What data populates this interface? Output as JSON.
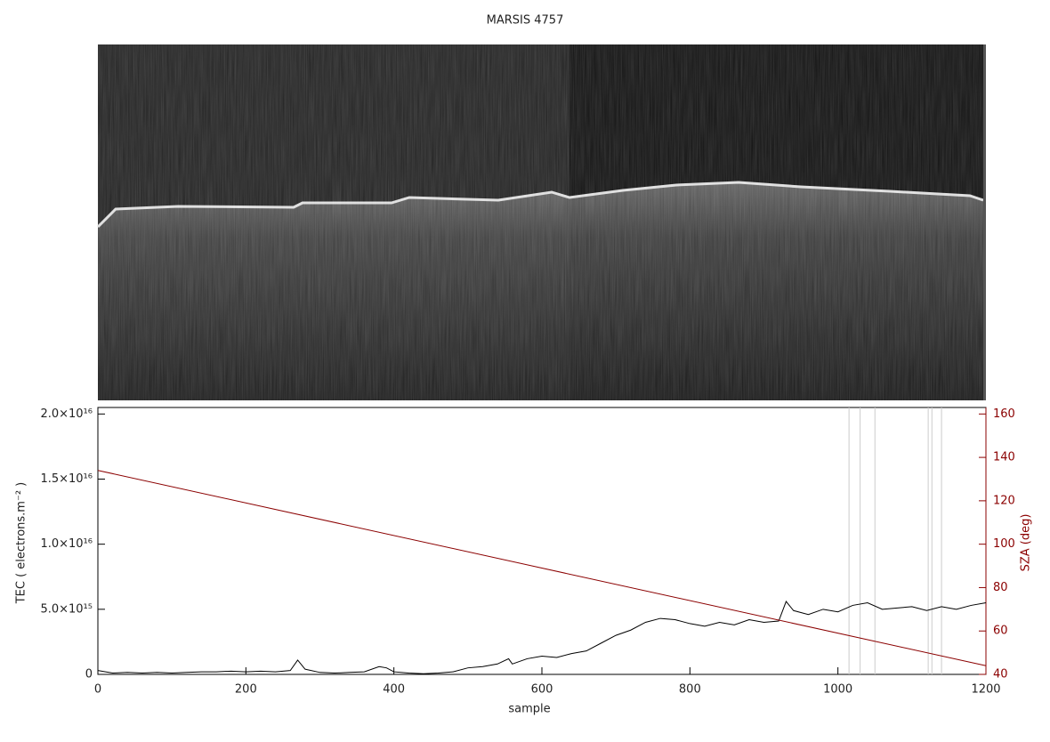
{
  "chart_data": {
    "type": "line",
    "title": "MARSIS 4757",
    "xlabel": "sample",
    "ylabel": "TEC ( electrons.m⁻² )",
    "y2label": "SZA (deg)",
    "xlim": [
      0,
      1200
    ],
    "xticks": [
      0,
      200,
      400,
      600,
      800,
      1000,
      1200
    ],
    "ylim": [
      0,
      2.05e+16
    ],
    "yticks": [
      {
        "value": 0,
        "label": "0"
      },
      {
        "value": 5000000000000000.0,
        "label": "5.0×10¹⁵"
      },
      {
        "value": 1e+16,
        "label": "1.0×10¹⁶"
      },
      {
        "value": 1.5e+16,
        "label": "1.5×10¹⁶"
      },
      {
        "value": 2e+16,
        "label": "2.0×10¹⁶"
      }
    ],
    "y2lim": [
      40,
      163
    ],
    "y2ticks": [
      40,
      60,
      80,
      100,
      120,
      140,
      160
    ],
    "axis_color": "#8b0000",
    "vlines": [
      1015,
      1030,
      1050,
      1122,
      1127,
      1140
    ],
    "vline_color": "#cccccc",
    "series": [
      {
        "name": "TEC",
        "color": "#000000",
        "x": [
          0,
          20,
          40,
          60,
          80,
          100,
          120,
          140,
          160,
          180,
          200,
          220,
          240,
          260,
          270,
          280,
          300,
          320,
          340,
          360,
          380,
          390,
          400,
          420,
          440,
          460,
          480,
          500,
          520,
          540,
          555,
          560,
          580,
          600,
          620,
          640,
          660,
          680,
          700,
          720,
          740,
          760,
          780,
          800,
          820,
          840,
          860,
          880,
          900,
          920,
          930,
          940,
          960,
          980,
          1000,
          1020,
          1040,
          1060,
          1080,
          1100,
          1120,
          1140,
          1160,
          1180,
          1200
        ],
        "values": [
          300000000000000.0,
          100000000000000.0,
          150000000000000.0,
          100000000000000.0,
          150000000000000.0,
          100000000000000.0,
          150000000000000.0,
          200000000000000.0,
          200000000000000.0,
          250000000000000.0,
          200000000000000.0,
          250000000000000.0,
          200000000000000.0,
          300000000000000.0,
          1100000000000000.0,
          400000000000000.0,
          150000000000000.0,
          100000000000000.0,
          150000000000000.0,
          200000000000000.0,
          600000000000000.0,
          500000000000000.0,
          200000000000000.0,
          100000000000000.0,
          50000000000000.0,
          100000000000000.0,
          200000000000000.0,
          500000000000000.0,
          600000000000000.0,
          800000000000000.0,
          1200000000000000.0,
          800000000000000.0,
          1200000000000000.0,
          1400000000000000.0,
          1300000000000000.0,
          1600000000000000.0,
          1800000000000000.0,
          2400000000000000.0,
          3000000000000000.0,
          3400000000000000.0,
          4000000000000000.0,
          4300000000000000.0,
          4200000000000000.0,
          3900000000000000.0,
          3700000000000000.0,
          4000000000000000.0,
          3800000000000000.0,
          4200000000000000.0,
          4000000000000000.0,
          4100000000000000.0,
          5600000000000000.0,
          4900000000000000.0,
          4600000000000000.0,
          5000000000000000.0,
          4800000000000000.0,
          5300000000000000.0,
          5500000000000000.0,
          5000000000000000.0,
          5100000000000000.0,
          5200000000000000.0,
          4900000000000000.0,
          5200000000000000.0,
          5000000000000000.0,
          5300000000000000.0,
          5500000000000000.0
        ]
      },
      {
        "name": "SZA",
        "color": "#8b0000",
        "axis": "y2",
        "x": [
          0,
          1200
        ],
        "values": [
          134,
          44
        ]
      }
    ]
  }
}
